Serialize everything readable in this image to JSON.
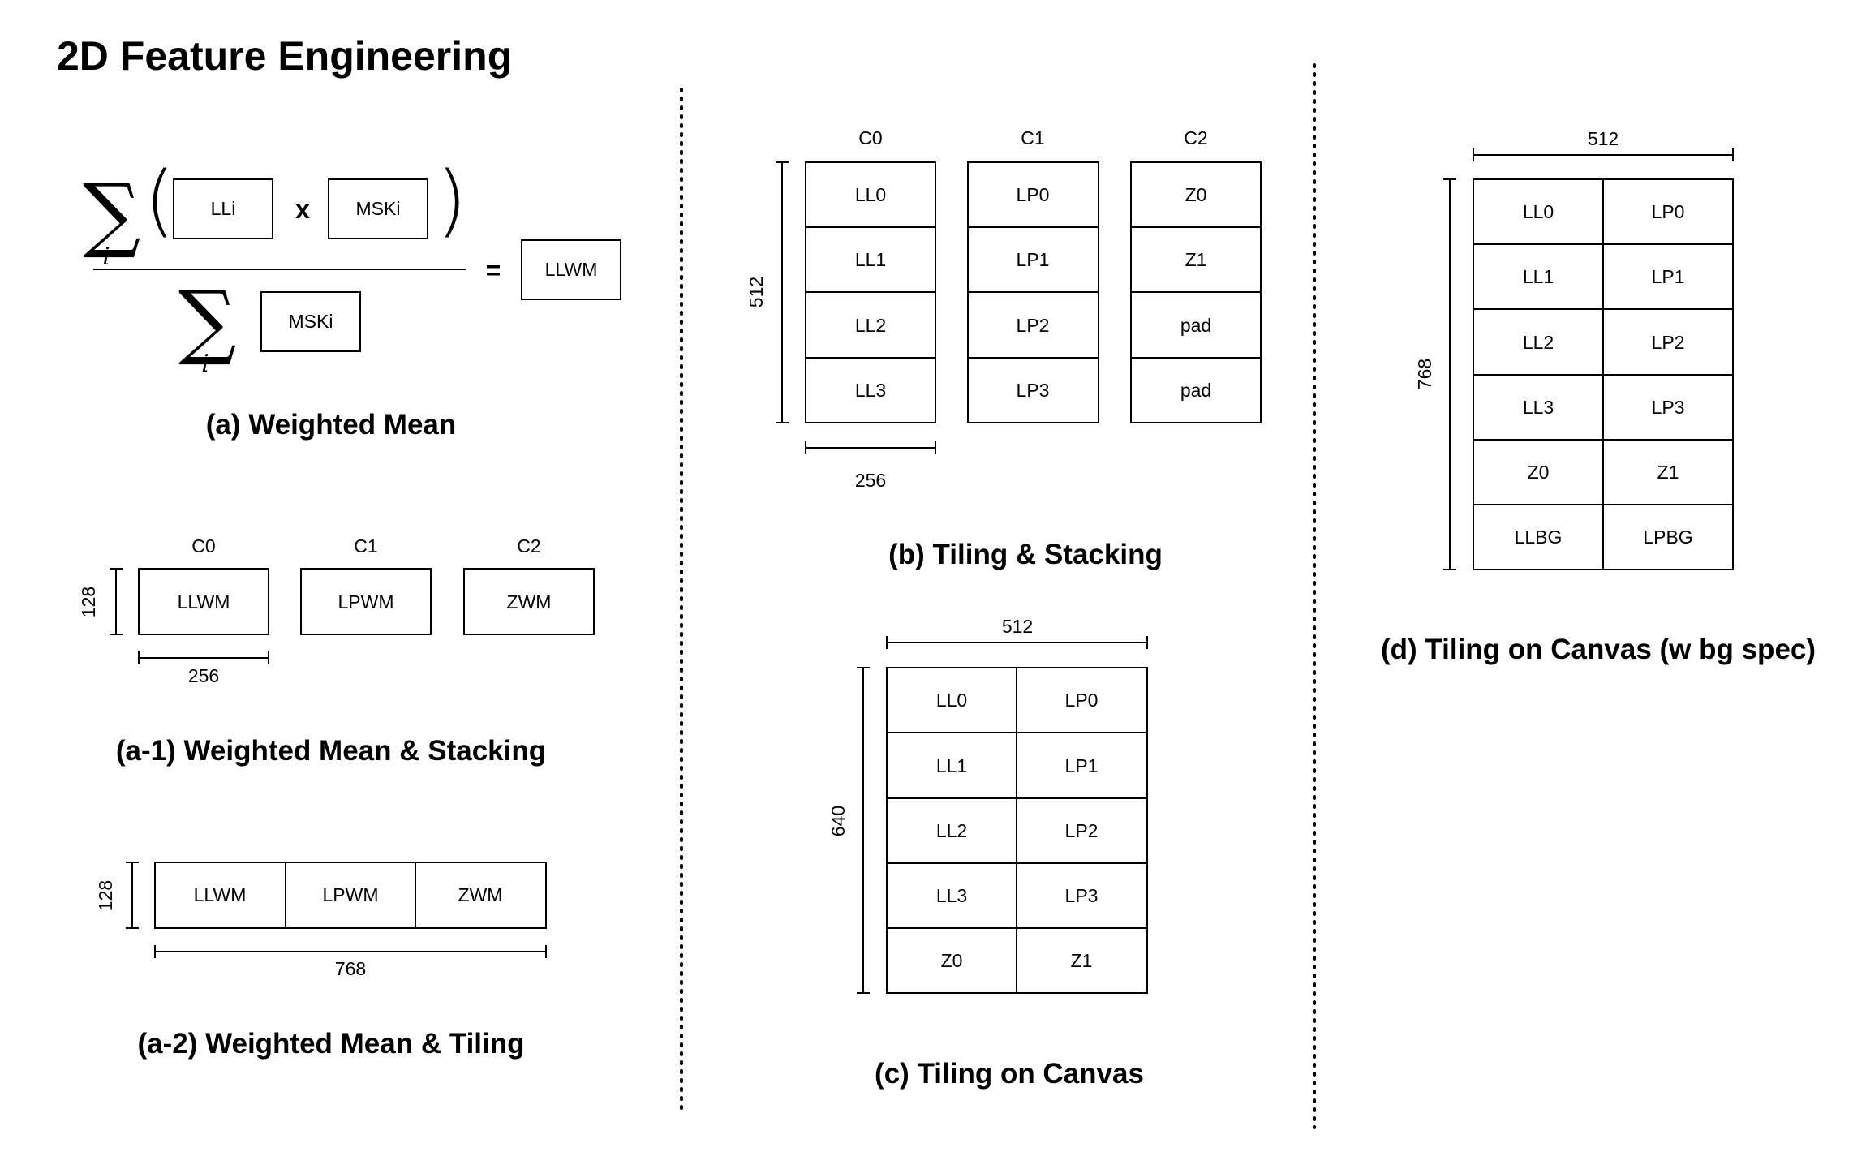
{
  "title": "2D Feature Engineering",
  "sections": {
    "a": {
      "caption": "(a) Weighted Mean",
      "numerator_left": "LLi",
      "operator": "x",
      "numerator_right": "MSKi",
      "denominator": "MSKi",
      "sum_index": "i",
      "equals": "=",
      "result": "LLWM"
    },
    "a1": {
      "caption": "(a-1) Weighted Mean & Stacking",
      "channels": [
        "C0",
        "C1",
        "C2"
      ],
      "cells": [
        "LLWM",
        "LPWM",
        "ZWM"
      ],
      "height_label": "128",
      "width_label": "256"
    },
    "a2": {
      "caption": "(a-2) Weighted Mean & Tiling",
      "cells": [
        "LLWM",
        "LPWM",
        "ZWM"
      ],
      "height_label": "128",
      "width_label": "768"
    },
    "b": {
      "caption": "(b) Tiling & Stacking",
      "channels": [
        "C0",
        "C1",
        "C2"
      ],
      "columns": [
        [
          "LL0",
          "LL1",
          "LL2",
          "LL3"
        ],
        [
          "LP0",
          "LP1",
          "LP2",
          "LP3"
        ],
        [
          "Z0",
          "Z1",
          "pad",
          "pad"
        ]
      ],
      "height_label": "512",
      "width_label": "256"
    },
    "c": {
      "caption": "(c) Tiling on Canvas",
      "rows": [
        [
          "LL0",
          "LP0"
        ],
        [
          "LL1",
          "LP1"
        ],
        [
          "LL2",
          "LP2"
        ],
        [
          "LL3",
          "LP3"
        ],
        [
          "Z0",
          "Z1"
        ]
      ],
      "height_label": "640",
      "width_label": "512"
    },
    "d": {
      "caption": "(d) Tiling on Canvas (w bg spec)",
      "rows": [
        [
          "LL0",
          "LP0"
        ],
        [
          "LL1",
          "LP1"
        ],
        [
          "LL2",
          "LP2"
        ],
        [
          "LL3",
          "LP3"
        ],
        [
          "Z0",
          "Z1"
        ],
        [
          "LLBG",
          "LPBG"
        ]
      ],
      "height_label": "768",
      "width_label": "512"
    }
  }
}
